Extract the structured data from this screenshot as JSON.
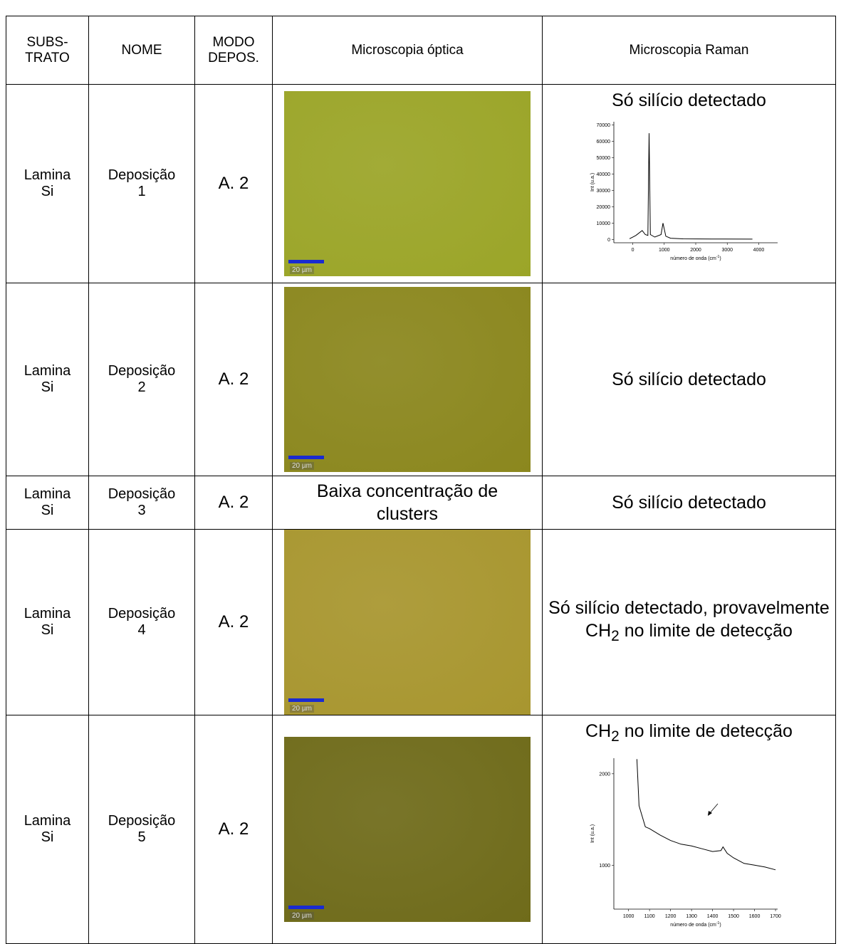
{
  "table": {
    "header": [
      "SUBS-\nTRATO",
      "NOME",
      "MODO\nDEPOS.",
      "Microscopia óptica",
      "Microscopia Raman"
    ],
    "rows": [
      {
        "substrate": "Lamina\nSi",
        "name": "Deposição\n1",
        "mode": "A. 2",
        "optical": {
          "color": "#9ba528",
          "scale": "20 µm"
        },
        "raman": {
          "before": "Só silício detectado"
        },
        "raman_chart": {
          "type": "line",
          "ylabel": "Int (u.a.)",
          "xlabel": {
            "before": "número de onda (cm",
            "sup": "-1",
            "after": ")"
          },
          "xlim": [
            -600,
            4600
          ],
          "ylim": [
            -2000,
            72000
          ],
          "xticks": [
            0,
            1000,
            2000,
            3000,
            4000
          ],
          "yticks": [
            0,
            10000,
            20000,
            30000,
            40000,
            50000,
            60000,
            70000
          ],
          "series": [
            {
              "color": "#000000",
              "x": [
                -100,
                100,
                300,
                400,
                480,
                520,
                560,
                700,
                900,
                960,
                1050,
                1200,
                1600,
                2500,
                3800
              ],
              "values": [
                500,
                2500,
                5500,
                3000,
                2500,
                65000,
                3000,
                1500,
                3000,
                10000,
                2000,
                800,
                400,
                300,
                200
              ]
            }
          ]
        }
      },
      {
        "substrate": "Lamina\nSi",
        "name": "Deposição\n2",
        "mode": "A. 2",
        "optical": {
          "color": "#8b871e",
          "scale": "20 µm"
        },
        "raman": {
          "before": "Só silício detectado"
        }
      },
      {
        "substrate": "Lamina\nSi",
        "name": "Deposição\n3",
        "mode": "A. 2",
        "optical_text": "Baixa concentração de clusters",
        "raman": {
          "before": "Só silício detectado"
        }
      },
      {
        "substrate": "Lamina\nSi",
        "name": "Deposição\n4",
        "mode": "A. 2",
        "optical": {
          "color": "#a8962f",
          "scale": "20 µm"
        },
        "raman": {
          "before": "Só silício detectado, provavelmente CH",
          "sub": "2",
          "after": " no limite de detecção"
        }
      },
      {
        "substrate": "Lamina\nSi",
        "name": "Deposição\n5",
        "mode": "A. 2",
        "optical": {
          "color": "#6f6b1a",
          "scale": "20 µm"
        },
        "raman": {
          "before": "CH",
          "sub": "2",
          "after": " no limite de detecção"
        },
        "raman_chart": {
          "type": "line",
          "ylabel": "Int (u.a.)",
          "xlabel": {
            "before": "número de onda (cm",
            "sup": "-1",
            "after": ")"
          },
          "xlim": [
            930,
            1710
          ],
          "ylim": [
            520,
            2170
          ],
          "xticks": [
            1000,
            1100,
            1200,
            1300,
            1400,
            1500,
            1600,
            1700
          ],
          "yticks": [
            1000,
            2000
          ],
          "series": [
            {
              "color": "#000000",
              "x": [
                1040,
                1050,
                1080,
                1100,
                1150,
                1200,
                1250,
                1300,
                1350,
                1400,
                1440,
                1450,
                1470,
                1500,
                1550,
                1600,
                1650,
                1700
              ],
              "values": [
                2160,
                1650,
                1420,
                1400,
                1330,
                1270,
                1230,
                1210,
                1180,
                1150,
                1160,
                1200,
                1130,
                1080,
                1020,
                1000,
                980,
                950
              ]
            }
          ]
        }
      }
    ]
  }
}
